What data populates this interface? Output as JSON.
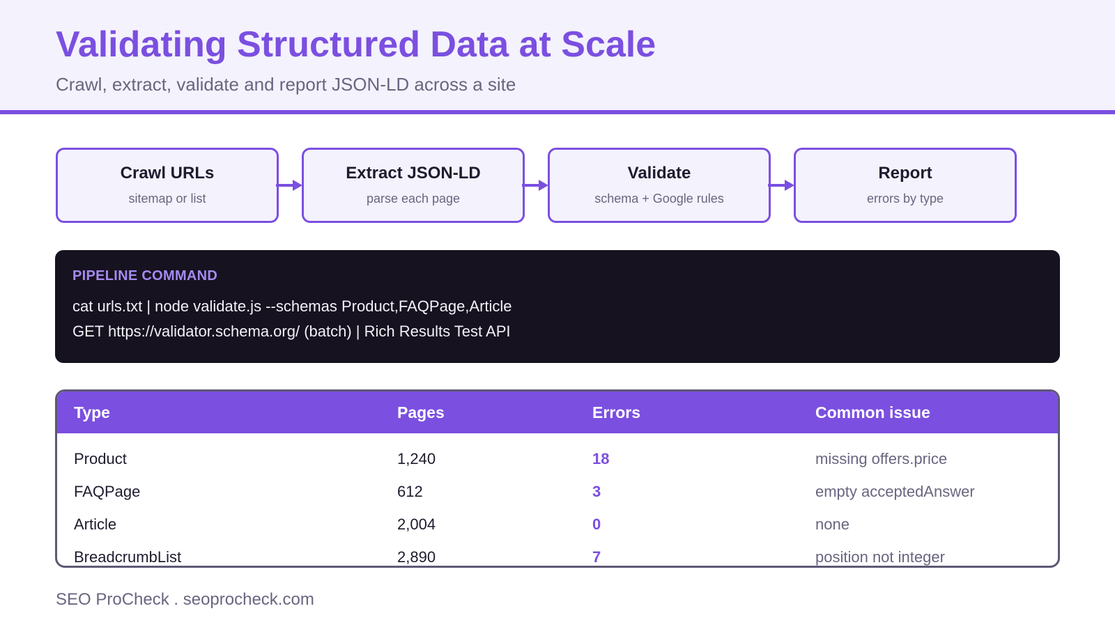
{
  "header": {
    "title": "Validating Structured Data at Scale",
    "subtitle": "Crawl, extract, validate and report JSON-LD across a site"
  },
  "pipeline": {
    "steps": [
      {
        "title": "Crawl URLs",
        "subtitle": "sitemap or list"
      },
      {
        "title": "Extract JSON-LD",
        "subtitle": "parse each page"
      },
      {
        "title": "Validate",
        "subtitle": "schema + Google rules"
      },
      {
        "title": "Report",
        "subtitle": "errors by type"
      }
    ]
  },
  "command": {
    "label": "PIPELINE COMMAND",
    "lines": [
      "cat urls.txt | node validate.js --schemas Product,FAQPage,Article",
      "GET https://validator.schema.org/ (batch) | Rich Results Test API"
    ]
  },
  "table": {
    "headers": [
      "Type",
      "Pages",
      "Errors",
      "Common issue"
    ],
    "rows": [
      {
        "type": "Product",
        "pages": "1,240",
        "errors": "18",
        "issue": "missing offers.price"
      },
      {
        "type": "FAQPage",
        "pages": "612",
        "errors": "3",
        "issue": "empty acceptedAnswer"
      },
      {
        "type": "Article",
        "pages": "2,004",
        "errors": "0",
        "issue": "none"
      },
      {
        "type": "BreadcrumbList",
        "pages": "2,890",
        "errors": "7",
        "issue": "position not integer"
      }
    ]
  },
  "footer": {
    "text": "SEO ProCheck . seoprocheck.com"
  },
  "colors": {
    "accent": "#7b4fe0",
    "header_bg": "#f4f2fd",
    "terminal_bg": "#16121f",
    "muted_text": "#6b6580"
  }
}
